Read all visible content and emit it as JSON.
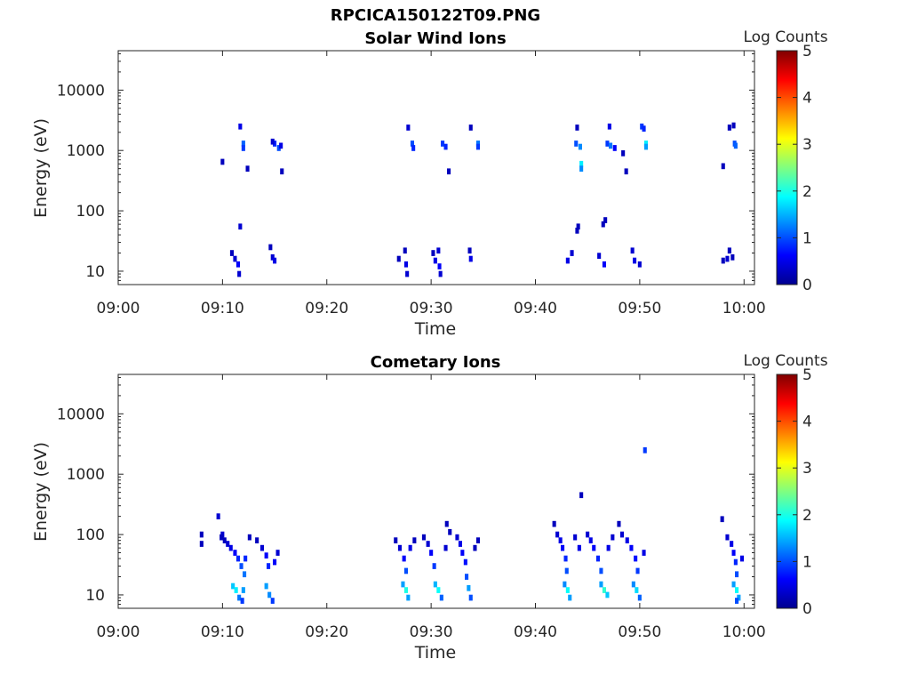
{
  "figure_title": "RPCICA150122T09.PNG",
  "chart_data": [
    {
      "type": "heatmap",
      "title": "Solar Wind Ions",
      "xlabel": "Time",
      "ylabel": "Energy (eV)",
      "x_ticks": [
        "09:00",
        "09:10",
        "09:20",
        "09:30",
        "09:40",
        "09:50",
        "10:00"
      ],
      "x_range_minutes": [
        0,
        61
      ],
      "y_scale": "log",
      "y_ticks": [
        "10",
        "100",
        "1000",
        "10000"
      ],
      "y_range_eV": [
        6,
        45000
      ],
      "grid": false,
      "colorbar": {
        "label": "Log Counts",
        "min": 0,
        "max": 5,
        "ticks": [
          "0",
          "1",
          "2",
          "3",
          "4",
          "5"
        ]
      },
      "cells": [
        [
          11.7,
          2500,
          0.5
        ],
        [
          12.0,
          1300,
          1.1
        ],
        [
          12.0,
          1100,
          0.9
        ],
        [
          15.0,
          1300,
          0.8
        ],
        [
          15.4,
          1100,
          1.0
        ],
        [
          14.8,
          1400,
          0.4
        ],
        [
          15.6,
          1200,
          0.5
        ],
        [
          10.0,
          650,
          0.3
        ],
        [
          12.4,
          500,
          0.3
        ],
        [
          15.7,
          450,
          0.3
        ],
        [
          11.7,
          55,
          0.4
        ],
        [
          10.9,
          20,
          0.3
        ],
        [
          11.2,
          16,
          0.4
        ],
        [
          11.5,
          13,
          0.6
        ],
        [
          11.6,
          9,
          0.4
        ],
        [
          14.6,
          25,
          0.3
        ],
        [
          14.8,
          17,
          0.4
        ],
        [
          15.0,
          15,
          0.5
        ],
        [
          27.8,
          2400,
          0.4
        ],
        [
          28.2,
          1300,
          1.0
        ],
        [
          28.3,
          1100,
          0.8
        ],
        [
          31.1,
          1300,
          0.9
        ],
        [
          31.4,
          1150,
          0.8
        ],
        [
          33.8,
          2400,
          0.3
        ],
        [
          34.5,
          1300,
          1.2
        ],
        [
          34.5,
          1150,
          0.9
        ],
        [
          31.7,
          450,
          0.3
        ],
        [
          26.9,
          16,
          0.3
        ],
        [
          27.5,
          22,
          0.3
        ],
        [
          27.6,
          13,
          0.5
        ],
        [
          27.7,
          9,
          0.4
        ],
        [
          30.2,
          20,
          0.3
        ],
        [
          30.4,
          15,
          0.5
        ],
        [
          30.7,
          22,
          0.4
        ],
        [
          30.8,
          12,
          0.6
        ],
        [
          30.9,
          9,
          0.4
        ],
        [
          33.7,
          22,
          0.3
        ],
        [
          33.8,
          16,
          0.5
        ],
        [
          44.0,
          2400,
          0.3
        ],
        [
          43.9,
          1300,
          1.0
        ],
        [
          44.3,
          1150,
          1.3
        ],
        [
          44.4,
          600,
          1.8
        ],
        [
          44.4,
          500,
          1.3
        ],
        [
          47.1,
          2500,
          0.5
        ],
        [
          46.9,
          1300,
          0.9
        ],
        [
          47.2,
          1200,
          1.2
        ],
        [
          47.6,
          1100,
          0.6
        ],
        [
          48.4,
          900,
          0.3
        ],
        [
          50.2,
          2500,
          0.9
        ],
        [
          50.4,
          2300,
          0.8
        ],
        [
          50.6,
          1300,
          1.8
        ],
        [
          50.6,
          1150,
          1.4
        ],
        [
          48.7,
          450,
          0.3
        ],
        [
          44.1,
          55,
          0.3
        ],
        [
          44.0,
          47,
          0.3
        ],
        [
          46.7,
          70,
          0.3
        ],
        [
          46.5,
          60,
          0.3
        ],
        [
          43.1,
          15,
          0.5
        ],
        [
          43.5,
          20,
          0.4
        ],
        [
          46.1,
          18,
          0.4
        ],
        [
          46.6,
          13,
          0.6
        ],
        [
          49.3,
          22,
          0.4
        ],
        [
          49.5,
          15,
          0.5
        ],
        [
          50.0,
          13,
          0.4
        ],
        [
          58.6,
          2400,
          0.3
        ],
        [
          59.0,
          2600,
          0.3
        ],
        [
          59.1,
          1300,
          1.0
        ],
        [
          59.2,
          1200,
          1.1
        ],
        [
          58.0,
          550,
          0.3
        ],
        [
          58.0,
          15,
          0.3
        ],
        [
          58.4,
          16,
          0.4
        ],
        [
          58.6,
          22,
          0.3
        ],
        [
          58.9,
          17,
          0.3
        ]
      ]
    },
    {
      "type": "heatmap",
      "title": "Cometary Ions",
      "xlabel": "Time",
      "ylabel": "Energy (eV)",
      "x_ticks": [
        "09:00",
        "09:10",
        "09:20",
        "09:30",
        "09:40",
        "09:50",
        "10:00"
      ],
      "x_range_minutes": [
        0,
        61
      ],
      "y_scale": "log",
      "y_ticks": [
        "10",
        "100",
        "1000",
        "10000"
      ],
      "y_range_eV": [
        6,
        45000
      ],
      "grid": false,
      "colorbar": {
        "label": "Log Counts",
        "min": 0,
        "max": 5,
        "ticks": [
          "0",
          "1",
          "2",
          "3",
          "4",
          "5"
        ]
      },
      "cells": [
        [
          9.6,
          200,
          0.4
        ],
        [
          10.0,
          100,
          0.4
        ],
        [
          50.5,
          2500,
          0.9
        ],
        [
          44.4,
          450,
          0.3
        ],
        [
          8.0,
          100,
          0.3
        ],
        [
          8.0,
          70,
          0.3
        ],
        [
          9.9,
          90,
          0.3
        ],
        [
          10.2,
          80,
          0.3
        ],
        [
          10.5,
          70,
          0.4
        ],
        [
          10.8,
          60,
          0.5
        ],
        [
          11.2,
          50,
          0.6
        ],
        [
          11.5,
          40,
          0.8
        ],
        [
          11.8,
          30,
          1.0
        ],
        [
          12.1,
          22,
          1.2
        ],
        [
          11.0,
          14,
          1.6
        ],
        [
          11.3,
          12,
          1.8
        ],
        [
          11.6,
          9,
          1.2
        ],
        [
          11.9,
          8,
          0.9
        ],
        [
          12.0,
          12,
          1.4
        ],
        [
          12.2,
          40,
          0.8
        ],
        [
          12.6,
          90,
          0.3
        ],
        [
          13.3,
          80,
          0.3
        ],
        [
          13.8,
          60,
          0.4
        ],
        [
          14.2,
          45,
          0.6
        ],
        [
          14.4,
          30,
          0.8
        ],
        [
          14.2,
          14,
          1.4
        ],
        [
          14.5,
          10,
          1.3
        ],
        [
          14.8,
          8,
          0.9
        ],
        [
          15.0,
          35,
          0.6
        ],
        [
          15.3,
          50,
          0.4
        ],
        [
          26.6,
          80,
          0.3
        ],
        [
          27.0,
          60,
          0.4
        ],
        [
          27.4,
          40,
          0.6
        ],
        [
          27.6,
          25,
          1.0
        ],
        [
          27.3,
          15,
          1.4
        ],
        [
          27.6,
          12,
          2.0
        ],
        [
          27.8,
          9,
          1.4
        ],
        [
          28.0,
          60,
          0.5
        ],
        [
          28.4,
          80,
          0.3
        ],
        [
          29.3,
          90,
          0.3
        ],
        [
          29.7,
          70,
          0.4
        ],
        [
          30.0,
          50,
          0.6
        ],
        [
          30.3,
          30,
          0.9
        ],
        [
          30.4,
          15,
          1.5
        ],
        [
          30.7,
          12,
          1.9
        ],
        [
          31.0,
          9,
          1.1
        ],
        [
          31.4,
          60,
          0.4
        ],
        [
          31.5,
          150,
          0.3
        ],
        [
          31.8,
          110,
          0.3
        ],
        [
          32.5,
          90,
          0.4
        ],
        [
          32.8,
          70,
          0.5
        ],
        [
          33.0,
          50,
          0.6
        ],
        [
          33.3,
          35,
          0.7
        ],
        [
          33.4,
          20,
          1.0
        ],
        [
          33.6,
          13,
          1.4
        ],
        [
          33.8,
          9,
          1.0
        ],
        [
          34.2,
          60,
          0.3
        ],
        [
          34.5,
          80,
          0.3
        ],
        [
          41.8,
          150,
          0.3
        ],
        [
          42.1,
          100,
          0.4
        ],
        [
          42.4,
          80,
          0.5
        ],
        [
          42.6,
          60,
          0.6
        ],
        [
          42.9,
          40,
          0.8
        ],
        [
          43.0,
          25,
          1.0
        ],
        [
          42.8,
          15,
          1.3
        ],
        [
          43.1,
          12,
          1.9
        ],
        [
          43.3,
          9,
          1.4
        ],
        [
          43.8,
          90,
          0.4
        ],
        [
          44.2,
          60,
          0.5
        ],
        [
          45.0,
          100,
          0.4
        ],
        [
          45.3,
          80,
          0.5
        ],
        [
          45.6,
          60,
          0.6
        ],
        [
          46.0,
          40,
          0.8
        ],
        [
          46.3,
          25,
          1.0
        ],
        [
          46.3,
          15,
          1.4
        ],
        [
          46.6,
          12,
          2.1
        ],
        [
          46.9,
          10,
          1.6
        ],
        [
          47.0,
          60,
          0.5
        ],
        [
          47.4,
          90,
          0.4
        ],
        [
          48.0,
          150,
          0.3
        ],
        [
          48.3,
          100,
          0.4
        ],
        [
          48.8,
          80,
          0.5
        ],
        [
          49.2,
          60,
          0.6
        ],
        [
          49.6,
          40,
          0.7
        ],
        [
          49.8,
          25,
          0.9
        ],
        [
          49.4,
          15,
          1.3
        ],
        [
          49.7,
          12,
          1.7
        ],
        [
          50.0,
          9,
          1.1
        ],
        [
          50.4,
          50,
          0.5
        ],
        [
          57.9,
          180,
          0.3
        ],
        [
          58.4,
          90,
          0.4
        ],
        [
          58.8,
          70,
          0.5
        ],
        [
          59.0,
          50,
          0.6
        ],
        [
          59.2,
          35,
          0.8
        ],
        [
          59.3,
          22,
          1.0
        ],
        [
          59.0,
          15,
          1.4
        ],
        [
          59.3,
          12,
          1.9
        ],
        [
          59.5,
          9,
          1.4
        ],
        [
          59.8,
          40,
          0.5
        ],
        [
          59.3,
          8,
          1.0
        ]
      ]
    }
  ]
}
